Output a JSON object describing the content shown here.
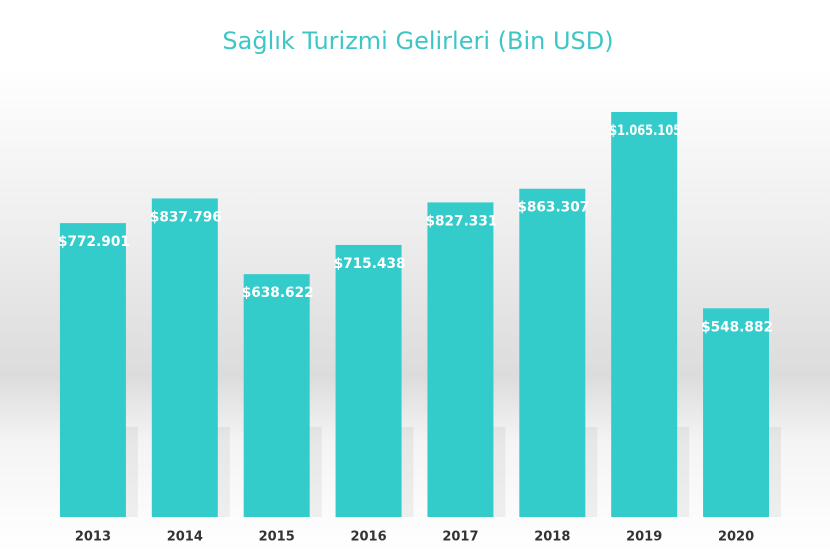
{
  "chart_data": {
    "type": "bar",
    "title": "Sağlık Turizmi Gelirleri (Bin USD)",
    "categories": [
      "2013",
      "2014",
      "2015",
      "2016",
      "2017",
      "2018",
      "2019",
      "2020"
    ],
    "values": [
      772901,
      837796,
      638622,
      715438,
      827331,
      863307,
      1065105,
      548882
    ],
    "value_labels": [
      "$772.901",
      "$837.796",
      "$638.622",
      "$715.438",
      "$827.331",
      "$863.307",
      "$1.065.105",
      "$548.882"
    ],
    "color": "#34cbcb"
  }
}
